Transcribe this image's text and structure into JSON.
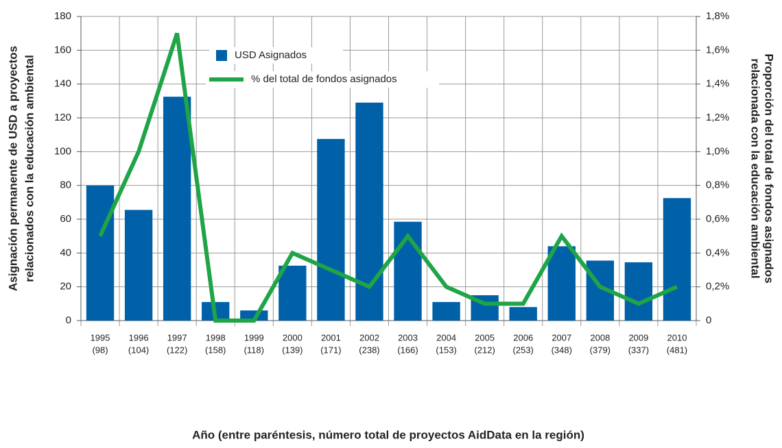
{
  "chart_data": {
    "type": "bar_line",
    "categories": [
      "1995",
      "1996",
      "1997",
      "1998",
      "1999",
      "2000",
      "2001",
      "2002",
      "2003",
      "2004",
      "2005",
      "2006",
      "2007",
      "2008",
      "2009",
      "2010"
    ],
    "category_sublabels": [
      "(98)",
      "(104)",
      "(122)",
      "(158)",
      "(118)",
      "(139)",
      "(171)",
      "(238)",
      "(166)",
      "(153)",
      "(212)",
      "(253)",
      "(348)",
      "(379)",
      "(337)",
      "(481)"
    ],
    "series": [
      {
        "name": "USD Asignados",
        "color": "#0060a8",
        "kind": "bar",
        "values": [
          80,
          65.5,
          132.5,
          11,
          6,
          32.5,
          107.5,
          129,
          58.5,
          11,
          15,
          8,
          44,
          35.5,
          34.5,
          72.5
        ]
      },
      {
        "name": "% del total de fondos asignados",
        "color": "#1fa447",
        "kind": "line",
        "axis": "y2",
        "values": [
          0.5,
          1.0,
          1.7,
          0,
          0,
          0.4,
          0.3,
          0.2,
          0.5,
          0.2,
          0.1,
          0.1,
          0.5,
          0.2,
          0.1,
          0.2
        ]
      }
    ],
    "ylabel": [
      "Asignación permanente de USD a proyectos",
      "relacionados con la educación ambiental"
    ],
    "y2label": [
      "Proporción del total de fondos asignados",
      "relacionada con la educación ambiental"
    ],
    "xlabel": "Año (entre paréntesis, número total de proyectos AidData en la región)",
    "ylim": [
      0,
      180
    ],
    "yticks": [
      0,
      20,
      40,
      60,
      80,
      100,
      120,
      140,
      160,
      180
    ],
    "y2lim": [
      0,
      1.8
    ],
    "y2ticks": [
      0,
      {
        "value": 0.2,
        "label": "0,2%"
      },
      {
        "value": 0.4,
        "label": "0,4%"
      },
      {
        "value": 0.6,
        "label": "0,6%"
      },
      {
        "value": 0.8,
        "label": "0,8%"
      },
      {
        "value": 1.0,
        "label": "1,0%"
      },
      {
        "value": 1.2,
        "label": "1,2%"
      },
      {
        "value": 1.4,
        "label": "1,4%"
      },
      {
        "value": 1.6,
        "label": "1,6%"
      },
      {
        "value": 1.8,
        "label": "1,8%"
      }
    ],
    "grid": true
  }
}
